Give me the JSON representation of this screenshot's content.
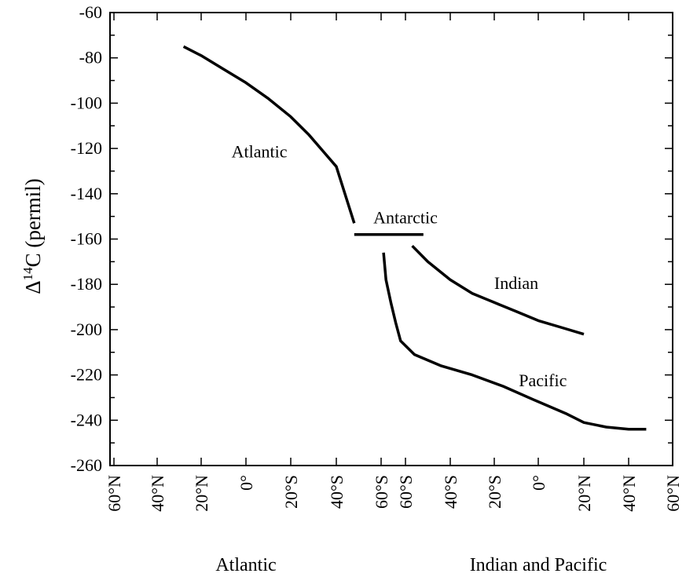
{
  "chart_data": {
    "type": "line",
    "ylabel": "Δ14C (permil)",
    "ylabel_parts": {
      "delta": "Δ",
      "sup": "14",
      "rest": "C (permil)"
    },
    "ylim": [
      -260,
      -60
    ],
    "y_ticks": [
      -60,
      -80,
      -100,
      -120,
      -140,
      -160,
      -180,
      -200,
      -220,
      -240,
      -260
    ],
    "x_tick_labels": [
      "60°N",
      "40°N",
      "20°N",
      "0°",
      "20°S",
      "40°S",
      "60°S",
      "60°S",
      "40°S",
      "20°S",
      "0°",
      "20°N",
      "40°N",
      "60°N"
    ],
    "group_labels": [
      "Atlantic",
      "Indian and Pacific"
    ],
    "grid": false,
    "series": [
      {
        "name": "Atlantic",
        "x": [
          1.6,
          2.0,
          2.5,
          3.0,
          3.5,
          4.0,
          4.4,
          4.7,
          5.0,
          5.4
        ],
        "y": [
          -75,
          -79,
          -85,
          -91,
          -98,
          -106,
          -114,
          -121,
          -128,
          -153
        ]
      },
      {
        "name": "Antarctic",
        "x": [
          5.4,
          6.0,
          6.5,
          7.0,
          7.4
        ],
        "y": [
          -158,
          -158,
          -158,
          -158,
          -158
        ]
      },
      {
        "name": "Indian",
        "x": [
          7.15,
          7.5,
          8.0,
          8.5,
          9.0,
          9.5,
          10.0,
          10.5,
          11.0
        ],
        "y": [
          -163,
          -170,
          -178,
          -184,
          -188,
          -192,
          -196,
          -199,
          -202
        ]
      },
      {
        "name": "Pacific",
        "x": [
          6.1,
          6.2,
          6.4,
          6.6,
          6.8,
          7.2,
          7.8,
          8.5,
          9.2,
          9.9,
          10.6,
          11.0,
          11.5,
          12.0,
          12.4
        ],
        "y": [
          -166,
          -178,
          -188,
          -197,
          -205,
          -211,
          -216,
          -220,
          -225,
          -231,
          -237,
          -241,
          -243,
          -244,
          -244
        ]
      }
    ],
    "annotations": [
      {
        "text": "Atlantic",
        "x": 3.3,
        "y": -124
      },
      {
        "text": "Antarctic",
        "x": 7.0,
        "y": -153
      },
      {
        "text": "Indian",
        "x": 9.5,
        "y": -182
      },
      {
        "text": "Pacific",
        "x": 10.1,
        "y": -225
      }
    ]
  }
}
